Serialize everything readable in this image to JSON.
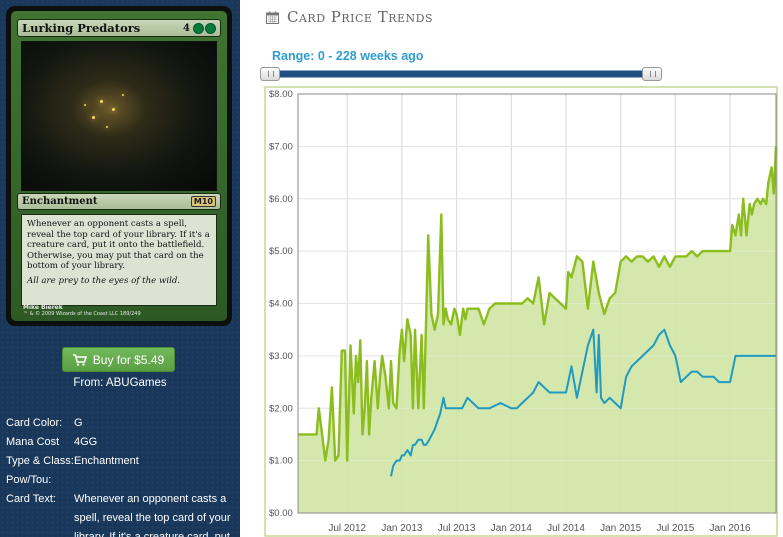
{
  "card": {
    "name": "Lurking Predators",
    "mana_generic": "4",
    "mana_symbols": [
      "green-mana-icon",
      "green-mana-icon"
    ],
    "type_line": "Enchantment",
    "set_symbol": "M10",
    "rules_text": "Whenever an opponent casts a spell, reveal the top card of your library. If it's a creature card, put it onto the battlefield. Otherwise, you may put that card on the bottom of your library.",
    "flavor_text": "All are prey to the eyes of the wild.",
    "artist": "Mike Bierek",
    "copyright": "™ & © 2009 Wizards of the Coast LLC 189/249"
  },
  "buy": {
    "label": "Buy for $5.49",
    "icon": "cart-icon",
    "from": "From: ABUGames"
  },
  "details": {
    "rows": [
      {
        "label": "Card Color:",
        "value": "G"
      },
      {
        "label": "Mana Cost",
        "value": "4GG"
      },
      {
        "label": "Type & Class:",
        "value": "Enchantment"
      },
      {
        "label": "Pow/Tou:",
        "value": ""
      },
      {
        "label": "Card Text:",
        "value": "Whenever an opponent casts a spell, reveal the top card of your library. If it's a creature card, put"
      }
    ]
  },
  "header": {
    "icon": "calendar-icon",
    "title": "Card Price Trends"
  },
  "range": {
    "label": "Range: 0 - 228 weeks ago",
    "min_weeks_ago": 0,
    "max_weeks_ago": 228
  },
  "colors": {
    "sidebar_bg": "#18375a",
    "buy_button": "#5fa94a",
    "range_text": "#2f9ccf",
    "series_green": "#8cbd1e",
    "series_green_fill": "#cfe4a3",
    "series_blue": "#1f9ac1"
  },
  "chart_data": {
    "type": "area",
    "title": "",
    "xlabel": "",
    "ylabel": "",
    "ylim": [
      0,
      8
    ],
    "y_ticks": [
      "$0.00",
      "$1.00",
      "$2.00",
      "$3.00",
      "$4.00",
      "$5.00",
      "$6.00",
      "$7.00",
      "$8.00"
    ],
    "x_ticks": [
      "Jul 2012",
      "Jan 2013",
      "Jul 2013",
      "Jan 2014",
      "Jul 2014",
      "Jan 2015",
      "Jul 2015",
      "Jan 2016"
    ],
    "x_tick_positions": [
      2012.5,
      2013.0,
      2013.5,
      2014.0,
      2014.5,
      2015.0,
      2015.5,
      2016.0
    ],
    "xlim": [
      2012.05,
      2016.42
    ],
    "grid": true,
    "series": [
      {
        "kind": "area",
        "x": [
          2012.05,
          2012.22,
          2012.24,
          2012.27,
          2012.3,
          2012.33,
          2012.36,
          2012.39,
          2012.42,
          2012.45,
          2012.48,
          2012.5,
          2012.53,
          2012.56,
          2012.58,
          2012.6,
          2012.62,
          2012.64,
          2012.66,
          2012.68,
          2012.7,
          2012.72,
          2012.75,
          2012.78,
          2012.8,
          2012.82,
          2012.85,
          2012.88,
          2012.9,
          2012.92,
          2012.95,
          2012.98,
          2013.0,
          2013.02,
          2013.05,
          2013.08,
          2013.1,
          2013.12,
          2013.15,
          2013.18,
          2013.2,
          2013.22,
          2013.24,
          2013.27,
          2013.3,
          2013.33,
          2013.36,
          2013.38,
          2013.4,
          2013.42,
          2013.45,
          2013.48,
          2013.5,
          2013.53,
          2013.56,
          2013.58,
          2013.6,
          2013.65,
          2013.7,
          2013.75,
          2013.8,
          2013.85,
          2013.9,
          2013.95,
          2014.0,
          2014.05,
          2014.1,
          2014.15,
          2014.2,
          2014.25,
          2014.3,
          2014.35,
          2014.4,
          2014.45,
          2014.5,
          2014.52,
          2014.55,
          2014.6,
          2014.65,
          2014.7,
          2014.75,
          2014.8,
          2014.85,
          2014.9,
          2014.95,
          2015.0,
          2015.05,
          2015.1,
          2015.15,
          2015.2,
          2015.25,
          2015.3,
          2015.35,
          2015.4,
          2015.45,
          2015.5,
          2015.55,
          2015.6,
          2015.65,
          2015.7,
          2015.75,
          2015.8,
          2015.85,
          2015.9,
          2015.95,
          2016.0,
          2016.02,
          2016.05,
          2016.08,
          2016.1,
          2016.12,
          2016.15,
          2016.18,
          2016.2,
          2016.22,
          2016.25,
          2016.28,
          2016.3,
          2016.33,
          2016.35,
          2016.38,
          2016.4,
          2016.42
        ],
        "y": [
          1.5,
          1.5,
          2.0,
          1.5,
          1.0,
          1.4,
          2.4,
          1.0,
          1.1,
          3.1,
          3.1,
          1.0,
          3.2,
          1.9,
          3.0,
          2.5,
          3.3,
          1.5,
          2.0,
          2.9,
          1.5,
          2.2,
          2.9,
          2.0,
          2.6,
          3.0,
          2.6,
          2.0,
          2.9,
          2.1,
          2.0,
          3.1,
          3.5,
          2.9,
          3.7,
          3.4,
          2.0,
          3.5,
          2.0,
          3.4,
          2.0,
          3.6,
          5.3,
          3.8,
          3.5,
          3.8,
          5.7,
          3.6,
          3.9,
          3.7,
          3.6,
          3.9,
          3.8,
          3.4,
          3.9,
          3.7,
          3.9,
          3.9,
          3.9,
          3.6,
          3.9,
          4.0,
          4.0,
          4.0,
          4.0,
          4.0,
          4.0,
          4.1,
          4.0,
          4.5,
          3.6,
          4.2,
          4.1,
          4.0,
          3.9,
          4.6,
          4.5,
          4.9,
          4.8,
          3.9,
          4.8,
          4.2,
          3.8,
          4.1,
          4.2,
          4.8,
          4.9,
          4.8,
          4.9,
          4.9,
          4.8,
          4.9,
          4.7,
          4.9,
          4.7,
          4.9,
          4.9,
          4.9,
          5.0,
          4.9,
          5.0,
          5.0,
          5.0,
          5.0,
          5.0,
          5.0,
          5.5,
          5.3,
          5.7,
          5.3,
          6.0,
          5.3,
          5.9,
          5.7,
          5.9,
          6.0,
          5.9,
          6.0,
          5.9,
          6.3,
          6.6,
          6.1,
          7.0
        ]
      },
      {
        "kind": "line",
        "x": [
          2012.9,
          2012.92,
          2012.95,
          2012.98,
          2013.0,
          2013.02,
          2013.05,
          2013.08,
          2013.1,
          2013.12,
          2013.15,
          2013.18,
          2013.2,
          2013.22,
          2013.25,
          2013.3,
          2013.35,
          2013.38,
          2013.4,
          2013.45,
          2013.5,
          2013.55,
          2013.6,
          2013.7,
          2013.8,
          2013.9,
          2014.0,
          2014.05,
          2014.1,
          2014.15,
          2014.2,
          2014.25,
          2014.3,
          2014.35,
          2014.4,
          2014.45,
          2014.5,
          2014.55,
          2014.6,
          2014.65,
          2014.7,
          2014.75,
          2014.78,
          2014.8,
          2014.82,
          2014.85,
          2014.9,
          2014.95,
          2015.0,
          2015.05,
          2015.1,
          2015.15,
          2015.2,
          2015.25,
          2015.3,
          2015.35,
          2015.4,
          2015.45,
          2015.5,
          2015.55,
          2015.6,
          2015.65,
          2015.7,
          2015.75,
          2015.8,
          2015.85,
          2015.9,
          2015.95,
          2016.0,
          2016.05,
          2016.1,
          2016.15,
          2016.2,
          2016.25,
          2016.3,
          2016.35,
          2016.4,
          2016.42
        ],
        "y": [
          0.7,
          0.9,
          1.0,
          1.0,
          1.1,
          1.1,
          1.2,
          1.1,
          1.3,
          1.3,
          1.4,
          1.4,
          1.3,
          1.3,
          1.4,
          1.6,
          1.9,
          2.2,
          2.0,
          2.0,
          2.0,
          2.0,
          2.2,
          2.0,
          2.0,
          2.1,
          2.0,
          2.0,
          2.1,
          2.2,
          2.3,
          2.5,
          2.4,
          2.3,
          2.3,
          2.3,
          2.3,
          2.8,
          2.2,
          2.7,
          3.2,
          3.5,
          2.3,
          3.4,
          2.2,
          2.1,
          2.2,
          2.1,
          2.0,
          2.6,
          2.8,
          2.9,
          3.0,
          3.1,
          3.2,
          3.4,
          3.5,
          3.2,
          3.0,
          2.5,
          2.6,
          2.7,
          2.7,
          2.6,
          2.6,
          2.6,
          2.5,
          2.5,
          2.5,
          3.0,
          3.0,
          3.0,
          3.0,
          3.0,
          3.0,
          3.0,
          3.0,
          3.0
        ]
      }
    ]
  }
}
